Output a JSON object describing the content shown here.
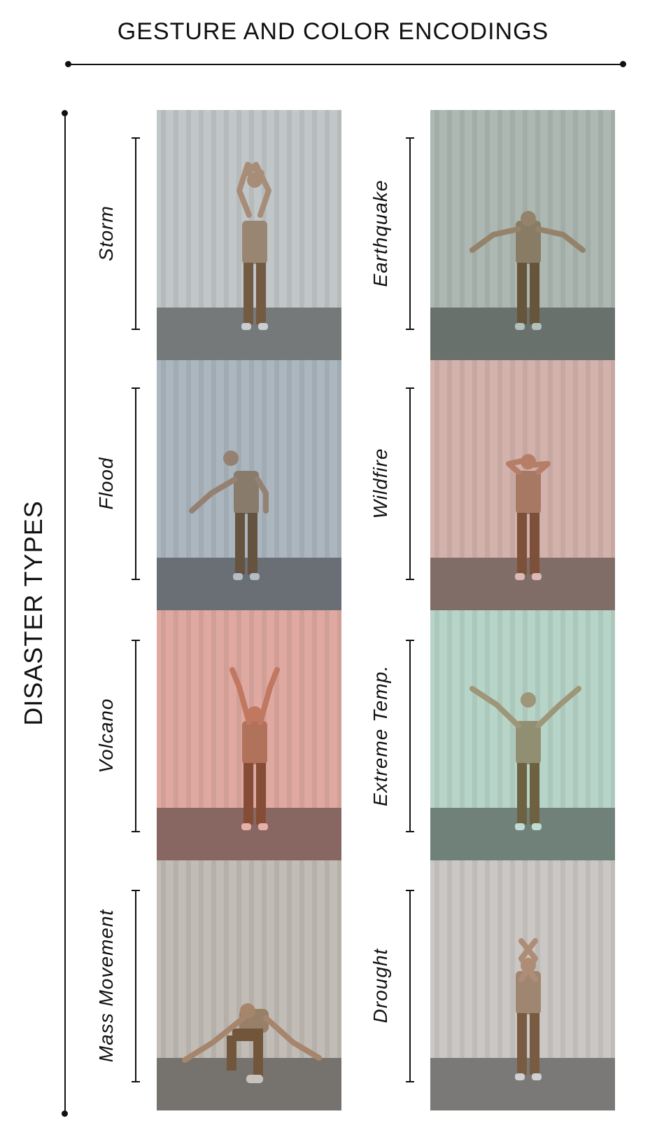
{
  "header": {
    "title": "GESTURE AND COLOR ENCODINGS"
  },
  "axis": {
    "label": "DISASTER TYPES"
  },
  "gestures": [
    {
      "id": "storm",
      "label": "Storm",
      "tint": "#b7c0c6"
    },
    {
      "id": "earthquake",
      "label": "Earthquake",
      "tint": "#8fa79c"
    },
    {
      "id": "flood",
      "label": "Flood",
      "tint": "#8fa2b6"
    },
    {
      "id": "wildfire",
      "label": "Wildfire",
      "tint": "#d79a92"
    },
    {
      "id": "volcano",
      "label": "Volcano",
      "tint": "#ef8a7f"
    },
    {
      "id": "extreme-temp",
      "label": "Extreme Temp.",
      "tint": "#a5d8c8"
    },
    {
      "id": "mass-movement",
      "label": "Mass Movement",
      "tint": "#b5ada5"
    },
    {
      "id": "drought",
      "label": "Drought",
      "tint": "#c7c1c2"
    }
  ]
}
